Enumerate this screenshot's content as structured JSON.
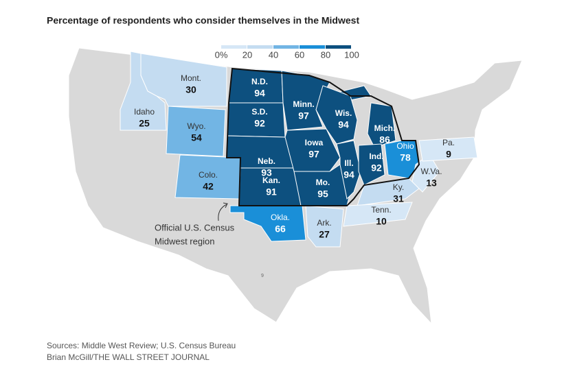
{
  "title": "Percentage of respondents who consider themselves in the Midwest",
  "legend": {
    "ticks": [
      {
        "value": 0,
        "label": "0%"
      },
      20,
      40,
      60,
      80,
      100
    ],
    "colors": [
      "#d6e7f6",
      "#c4dcf1",
      "#72b5e4",
      "#1a8fd8",
      "#0d507f"
    ]
  },
  "states": [
    {
      "name": "Mont.",
      "value": 30
    },
    {
      "name": "Idaho",
      "value": 25
    },
    {
      "name": "Wyo.",
      "value": 54
    },
    {
      "name": "Colo.",
      "value": 42
    },
    {
      "name": "N.D.",
      "value": 94
    },
    {
      "name": "S.D.",
      "value": 92
    },
    {
      "name": "Neb.",
      "value": 93
    },
    {
      "name": "Kan.",
      "value": 91
    },
    {
      "name": "Minn.",
      "value": 97
    },
    {
      "name": "Iowa",
      "value": 97
    },
    {
      "name": "Mo.",
      "value": 95
    },
    {
      "name": "Wis.",
      "value": 94
    },
    {
      "name": "Ill.",
      "value": 94
    },
    {
      "name": "Mich.",
      "value": 86
    },
    {
      "name": "Ind.",
      "value": 92
    },
    {
      "name": "Ohio",
      "value": 78
    },
    {
      "name": "Ky.",
      "value": 31
    },
    {
      "name": "Tenn.",
      "value": 10
    },
    {
      "name": "W.Va.",
      "value": 13
    },
    {
      "name": "Pa.",
      "value": 9
    },
    {
      "name": "Okla.",
      "value": 66
    },
    {
      "name": "Ark.",
      "value": 27
    }
  ],
  "annotation": [
    "Official U.S. Census",
    "Midwest region"
  ],
  "map_mark": "9",
  "sources": "Sources: Middle West Review; U.S. Census Bureau",
  "credit": "Brian McGill/THE WALL STREET JOURNAL"
}
